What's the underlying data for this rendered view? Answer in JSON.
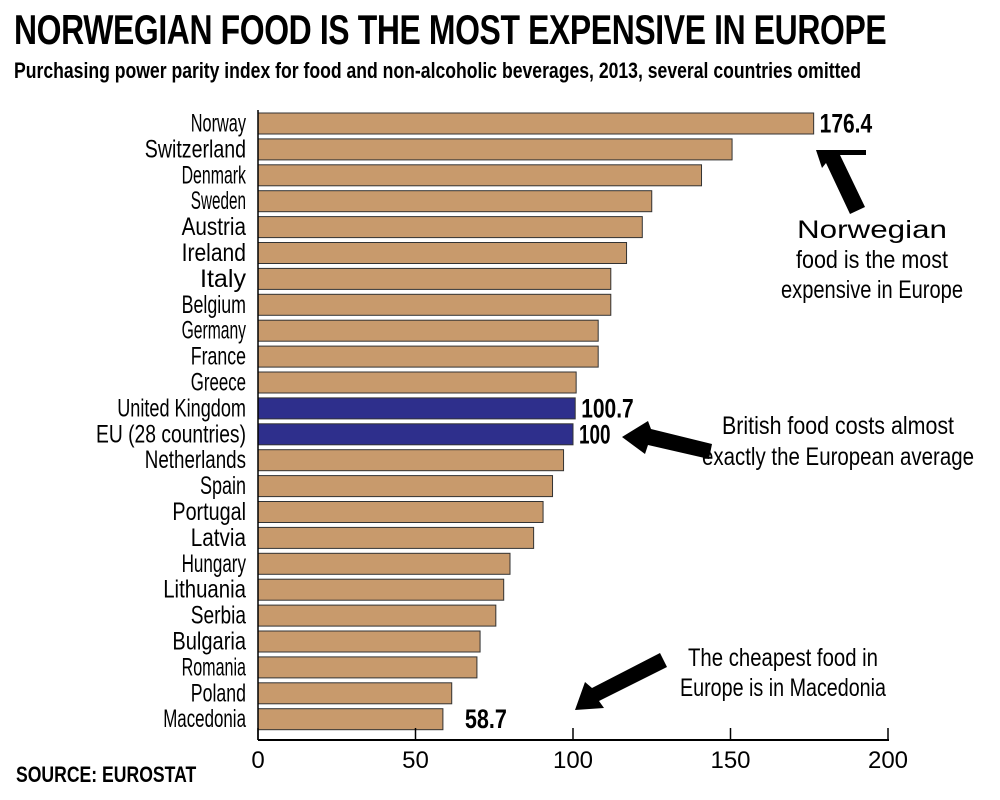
{
  "title": "NORWEGIAN FOOD IS THE MOST EXPENSIVE IN EUROPE",
  "subtitle": "Purchasing power parity index for food and non-alcoholic beverages, 2013, several countries omitted",
  "source": "SOURCE: EUROSTAT",
  "colors": {
    "bar": "#c89a6c",
    "highlight_bar": "#2e2f8c",
    "bar_outline": "#333333",
    "text": "#000000"
  },
  "chart_data": {
    "type": "bar",
    "orientation": "horizontal",
    "categories": [
      "Norway",
      "Switzerland",
      "Denmark",
      "Sweden",
      "Austria",
      "Ireland",
      "Italy",
      "Belgium",
      "Germany",
      "France",
      "Greece",
      "United Kingdom",
      "EU (28 countries)",
      "Netherlands",
      "Spain",
      "Portugal",
      "Latvia",
      "Hungary",
      "Lithuania",
      "Serbia",
      "Bulgaria",
      "Romania",
      "Poland",
      "Macedonia"
    ],
    "values": [
      176.4,
      150.5,
      140.8,
      125,
      122,
      117,
      112,
      112,
      108,
      108,
      101,
      100.7,
      100,
      97,
      93.5,
      90.5,
      87.5,
      80,
      78,
      75.5,
      70.5,
      69.5,
      61.5,
      58.7
    ],
    "highlighted": [
      "United Kingdom",
      "EU (28 countries)"
    ],
    "value_labels": [
      {
        "category": "Norway",
        "text": "176.4"
      },
      {
        "category": "United Kingdom",
        "text": "100.7"
      },
      {
        "category": "EU (28 countries)",
        "text": "100"
      },
      {
        "category": "Macedonia",
        "text": "58.7"
      }
    ],
    "xlim": [
      0,
      200
    ],
    "xticks": [
      0,
      50,
      100,
      150,
      200
    ],
    "grid": false,
    "annotations": [
      {
        "text": [
          "Norwegian",
          "food is the most",
          "expensive in Europe"
        ],
        "points_to": "Norway"
      },
      {
        "text": [
          "British food costs almost",
          "exactly the European average"
        ],
        "points_to": "EU (28 countries)"
      },
      {
        "text": [
          "The cheapest food in",
          "Europe is in Macedonia"
        ],
        "points_to": "x-axis 100"
      }
    ]
  }
}
